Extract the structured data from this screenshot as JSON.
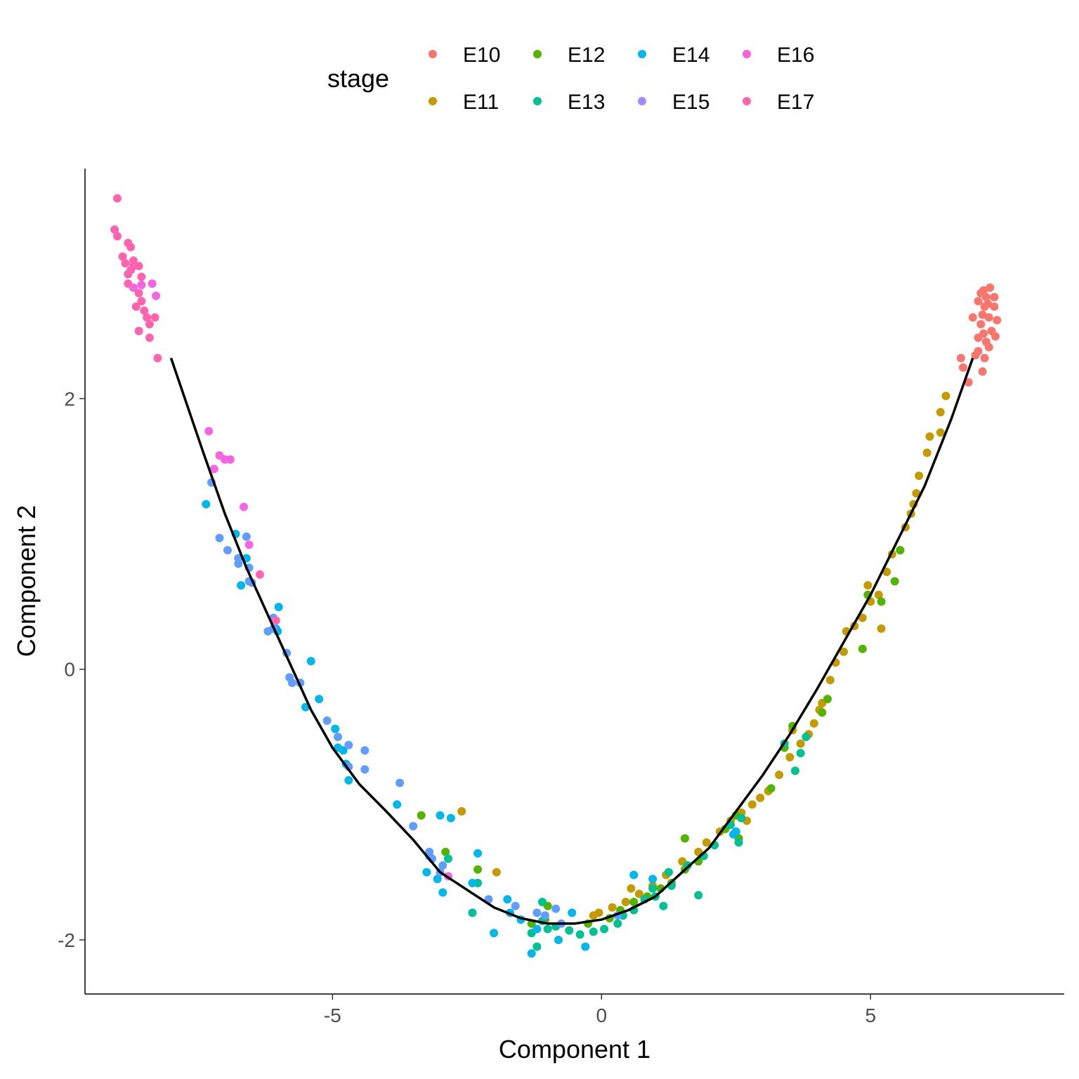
{
  "chart_data": {
    "type": "scatter",
    "xlabel": "Component 1",
    "ylabel": "Component 2",
    "xlim": [
      -9.6,
      8.6
    ],
    "ylim": [
      -2.4,
      3.7
    ],
    "x_ticks": [
      -5,
      0,
      5
    ],
    "x_tick_labels": [
      "-5",
      "0",
      "5"
    ],
    "y_ticks": [
      -2,
      0,
      2
    ],
    "y_tick_labels": [
      "-2",
      "0",
      "2"
    ],
    "grid": false,
    "legend": {
      "title": "stage",
      "position": "top",
      "entries": [
        {
          "name": "E10",
          "color": "#F8766D"
        },
        {
          "name": "E11",
          "color": "#C49A00"
        },
        {
          "name": "E12",
          "color": "#53B400"
        },
        {
          "name": "E13",
          "color": "#00C094"
        },
        {
          "name": "E14",
          "color": "#00B6EB"
        },
        {
          "name": "E15",
          "color": "#A58AFF"
        },
        {
          "name": "E16",
          "color": "#FB61D7"
        },
        {
          "name": "E17",
          "color": "#FF66A8"
        }
      ]
    },
    "series": [
      {
        "name": "E10",
        "color": "#F8766D",
        "points": [
          [
            7.0,
            2.72
          ],
          [
            7.05,
            2.78
          ],
          [
            7.1,
            2.8
          ],
          [
            7.12,
            2.68
          ],
          [
            7.15,
            2.75
          ],
          [
            7.08,
            2.62
          ],
          [
            7.18,
            2.7
          ],
          [
            7.2,
            2.6
          ],
          [
            7.05,
            2.55
          ],
          [
            7.1,
            2.48
          ],
          [
            7.15,
            2.42
          ],
          [
            7.2,
            2.38
          ],
          [
            7.0,
            2.45
          ],
          [
            7.3,
            2.68
          ],
          [
            7.35,
            2.58
          ],
          [
            7.32,
            2.46
          ],
          [
            7.25,
            2.5
          ],
          [
            7.0,
            2.35
          ],
          [
            6.95,
            2.32
          ],
          [
            6.68,
            2.3
          ],
          [
            6.82,
            2.12
          ],
          [
            7.08,
            2.2
          ],
          [
            7.3,
            2.75
          ],
          [
            7.12,
            2.3
          ],
          [
            6.72,
            2.23
          ],
          [
            6.9,
            2.6
          ],
          [
            7.22,
            2.82
          ]
        ]
      },
      {
        "name": "E11",
        "color": "#C49A00",
        "points": [
          [
            6.4,
            2.02
          ],
          [
            6.3,
            1.9
          ],
          [
            6.1,
            1.72
          ],
          [
            6.05,
            1.6
          ],
          [
            5.9,
            1.43
          ],
          [
            5.85,
            1.3
          ],
          [
            5.75,
            1.15
          ],
          [
            5.65,
            1.05
          ],
          [
            5.55,
            0.88
          ],
          [
            5.4,
            0.85
          ],
          [
            5.3,
            0.72
          ],
          [
            5.15,
            0.55
          ],
          [
            5.0,
            0.5
          ],
          [
            4.85,
            0.38
          ],
          [
            4.7,
            0.32
          ],
          [
            4.55,
            0.28
          ],
          [
            4.5,
            0.13
          ],
          [
            4.35,
            0.05
          ],
          [
            4.25,
            -0.08
          ],
          [
            4.1,
            -0.25
          ],
          [
            4.05,
            -0.3
          ],
          [
            3.95,
            -0.4
          ],
          [
            3.85,
            -0.48
          ],
          [
            3.7,
            -0.55
          ],
          [
            3.5,
            -0.65
          ],
          [
            3.3,
            -0.78
          ],
          [
            3.1,
            -0.9
          ],
          [
            2.95,
            -0.95
          ],
          [
            2.8,
            -1.0
          ],
          [
            2.6,
            -1.06
          ],
          [
            2.4,
            -1.12
          ],
          [
            2.2,
            -1.2
          ],
          [
            1.95,
            -1.28
          ],
          [
            1.8,
            -1.35
          ],
          [
            1.5,
            -1.42
          ],
          [
            1.2,
            -1.52
          ],
          [
            0.95,
            -1.6
          ],
          [
            0.7,
            -1.66
          ],
          [
            0.45,
            -1.72
          ],
          [
            0.2,
            -1.76
          ],
          [
            -0.05,
            -1.8
          ],
          [
            -0.15,
            -1.82
          ],
          [
            5.8,
            1.22
          ],
          [
            5.2,
            0.3
          ],
          [
            4.95,
            0.62
          ],
          [
            3.55,
            -0.45
          ],
          [
            2.7,
            -1.12
          ],
          [
            -2.6,
            -1.05
          ],
          [
            -1.95,
            -1.5
          ],
          [
            0.55,
            -1.62
          ],
          [
            6.3,
            1.75
          ]
        ]
      },
      {
        "name": "E12",
        "color": "#53B400",
        "points": [
          [
            5.45,
            0.65
          ],
          [
            5.2,
            0.5
          ],
          [
            4.85,
            0.15
          ],
          [
            4.2,
            -0.22
          ],
          [
            3.55,
            -0.42
          ],
          [
            3.15,
            -0.88
          ],
          [
            2.5,
            -1.08
          ],
          [
            2.3,
            -1.18
          ],
          [
            1.8,
            -1.42
          ],
          [
            1.55,
            -1.48
          ],
          [
            1.3,
            -1.58
          ],
          [
            1.1,
            -1.62
          ],
          [
            0.85,
            -1.68
          ],
          [
            0.6,
            -1.72
          ],
          [
            0.35,
            -1.78
          ],
          [
            0.15,
            -1.84
          ],
          [
            -0.25,
            -1.88
          ],
          [
            -1.0,
            -1.75
          ],
          [
            -1.3,
            -1.88
          ],
          [
            -3.35,
            -1.08
          ],
          [
            -2.9,
            -1.35
          ],
          [
            -1.05,
            -1.85
          ],
          [
            2.55,
            -1.25
          ],
          [
            1.55,
            -1.25
          ],
          [
            3.4,
            -0.58
          ],
          [
            4.95,
            0.55
          ],
          [
            5.55,
            0.88
          ],
          [
            -2.3,
            -1.48
          ],
          [
            4.1,
            -0.32
          ]
        ]
      },
      {
        "name": "E13",
        "color": "#00C094",
        "points": [
          [
            3.8,
            -0.5
          ],
          [
            3.7,
            -0.62
          ],
          [
            3.6,
            -0.75
          ],
          [
            3.4,
            -0.55
          ],
          [
            2.6,
            -1.1
          ],
          [
            2.4,
            -1.15
          ],
          [
            2.1,
            -1.3
          ],
          [
            1.9,
            -1.38
          ],
          [
            1.6,
            -1.45
          ],
          [
            1.25,
            -1.5
          ],
          [
            1.3,
            -1.6
          ],
          [
            1.15,
            -1.75
          ],
          [
            0.95,
            -1.62
          ],
          [
            0.8,
            -1.7
          ],
          [
            0.6,
            -1.78
          ],
          [
            0.3,
            -1.88
          ],
          [
            0.05,
            -1.92
          ],
          [
            -0.15,
            -1.94
          ],
          [
            -0.4,
            -1.96
          ],
          [
            -0.6,
            -1.93
          ],
          [
            -0.85,
            -1.9
          ],
          [
            -1.1,
            -1.86
          ],
          [
            -1.3,
            -1.95
          ],
          [
            -1.2,
            -2.05
          ],
          [
            -1.0,
            -1.92
          ],
          [
            -2.3,
            -1.58
          ],
          [
            -2.4,
            -1.8
          ],
          [
            -2.85,
            -1.4
          ],
          [
            1.8,
            -1.67
          ],
          [
            2.55,
            -1.28
          ],
          [
            1.0,
            -1.68
          ],
          [
            0.4,
            -1.82
          ],
          [
            -1.1,
            -1.72
          ]
        ]
      },
      {
        "name": "E14",
        "color": "#00B6EB",
        "points": [
          [
            -7.35,
            1.22
          ],
          [
            -6.8,
            1.0
          ],
          [
            -6.6,
            0.82
          ],
          [
            -6.7,
            0.62
          ],
          [
            -6.0,
            0.46
          ],
          [
            -6.05,
            0.3
          ],
          [
            -6.02,
            0.28
          ],
          [
            -5.4,
            0.06
          ],
          [
            -5.5,
            -0.28
          ],
          [
            -5.25,
            -0.22
          ],
          [
            -4.95,
            -0.44
          ],
          [
            -4.9,
            -0.58
          ],
          [
            -4.75,
            -0.7
          ],
          [
            -4.7,
            -0.82
          ],
          [
            -3.8,
            -1.0
          ],
          [
            -3.0,
            -1.08
          ],
          [
            -2.8,
            -1.1
          ],
          [
            -3.2,
            -1.38
          ],
          [
            -3.05,
            -1.55
          ],
          [
            -2.95,
            -1.65
          ],
          [
            -2.4,
            -1.58
          ],
          [
            -2.3,
            -1.36
          ],
          [
            -1.75,
            -1.7
          ],
          [
            -1.5,
            -1.85
          ],
          [
            -1.2,
            -1.92
          ],
          [
            -1.3,
            -2.1
          ],
          [
            -0.8,
            -2.0
          ],
          [
            -0.3,
            -2.05
          ],
          [
            0.6,
            -1.52
          ],
          [
            0.95,
            -1.55
          ],
          [
            2.45,
            -1.22
          ],
          [
            2.5,
            -1.2
          ],
          [
            -4.8,
            -0.6
          ],
          [
            -3.25,
            -1.5
          ],
          [
            -2.0,
            -1.95
          ],
          [
            -1.7,
            -1.8
          ],
          [
            -0.55,
            -1.8
          ]
        ]
      },
      {
        "name": "E15",
        "color": "#619CFF",
        "points": [
          [
            -7.25,
            1.38
          ],
          [
            -7.1,
            0.97
          ],
          [
            -6.95,
            0.88
          ],
          [
            -6.75,
            0.82
          ],
          [
            -6.75,
            0.78
          ],
          [
            -6.55,
            0.75
          ],
          [
            -6.55,
            0.65
          ],
          [
            -6.5,
            0.64
          ],
          [
            -6.6,
            0.98
          ],
          [
            -6.2,
            0.28
          ],
          [
            -6.1,
            0.3
          ],
          [
            -6.1,
            0.38
          ],
          [
            -5.85,
            0.12
          ],
          [
            -5.8,
            -0.06
          ],
          [
            -5.75,
            -0.1
          ],
          [
            -5.6,
            -0.1
          ],
          [
            -5.1,
            -0.38
          ],
          [
            -4.9,
            -0.5
          ],
          [
            -4.7,
            -0.56
          ],
          [
            -4.7,
            -0.72
          ],
          [
            -4.4,
            -0.74
          ],
          [
            -4.4,
            -0.6
          ],
          [
            -3.75,
            -0.84
          ],
          [
            -3.5,
            -1.16
          ],
          [
            -3.2,
            -1.35
          ],
          [
            -3.15,
            -1.4
          ],
          [
            -3.0,
            -1.5
          ],
          [
            -2.1,
            -1.7
          ],
          [
            -1.6,
            -1.75
          ],
          [
            -1.2,
            -1.8
          ],
          [
            -1.05,
            -1.82
          ],
          [
            -0.85,
            -1.77
          ],
          [
            0.3,
            -1.82
          ],
          [
            -0.75,
            -1.88
          ],
          [
            -2.95,
            -1.45
          ]
        ]
      },
      {
        "name": "E16",
        "color": "#F564E3",
        "points": [
          [
            -8.55,
            2.84
          ],
          [
            -8.35,
            2.85
          ],
          [
            -8.28,
            2.76
          ],
          [
            -7.3,
            1.76
          ],
          [
            -7.1,
            1.58
          ],
          [
            -7.0,
            1.55
          ],
          [
            -6.9,
            1.55
          ],
          [
            -6.55,
            0.92
          ],
          [
            -7.2,
            1.48
          ],
          [
            -6.65,
            1.2
          ],
          [
            -8.7,
            2.82
          ],
          [
            -2.85,
            -1.53
          ]
        ]
      },
      {
        "name": "E17",
        "color": "#FF64B0",
        "points": [
          [
            -9.0,
            3.48
          ],
          [
            -9.05,
            3.25
          ],
          [
            -9.0,
            3.2
          ],
          [
            -8.8,
            3.15
          ],
          [
            -8.75,
            3.12
          ],
          [
            -8.85,
            3.0
          ],
          [
            -8.7,
            2.98
          ],
          [
            -8.75,
            2.95
          ],
          [
            -8.8,
            2.92
          ],
          [
            -8.6,
            2.98
          ],
          [
            -8.55,
            2.9
          ],
          [
            -8.8,
            2.85
          ],
          [
            -8.6,
            2.78
          ],
          [
            -8.55,
            2.72
          ],
          [
            -8.65,
            2.68
          ],
          [
            -8.5,
            2.65
          ],
          [
            -8.45,
            2.6
          ],
          [
            -8.4,
            2.55
          ],
          [
            -8.3,
            2.6
          ],
          [
            -8.6,
            2.5
          ],
          [
            -8.4,
            2.45
          ],
          [
            -8.25,
            2.3
          ],
          [
            -6.35,
            0.7
          ],
          [
            -6.05,
            0.36
          ],
          [
            -8.7,
            3.02
          ],
          [
            -8.9,
            3.05
          ]
        ]
      }
    ],
    "trajectory": [
      [
        -8.0,
        2.3
      ],
      [
        -7.7,
        1.95
      ],
      [
        -7.4,
        1.6
      ],
      [
        -7.0,
        1.15
      ],
      [
        -6.6,
        0.75
      ],
      [
        -6.2,
        0.4
      ],
      [
        -5.8,
        0.05
      ],
      [
        -5.4,
        -0.3
      ],
      [
        -5.0,
        -0.58
      ],
      [
        -4.5,
        -0.85
      ],
      [
        -4.0,
        -1.05
      ],
      [
        -3.5,
        -1.26
      ],
      [
        -3.0,
        -1.5
      ],
      [
        -2.5,
        -1.63
      ],
      [
        -2.0,
        -1.76
      ],
      [
        -1.5,
        -1.84
      ],
      [
        -1.0,
        -1.88
      ],
      [
        -0.5,
        -1.88
      ],
      [
        0.0,
        -1.85
      ],
      [
        0.5,
        -1.78
      ],
      [
        1.0,
        -1.68
      ],
      [
        1.5,
        -1.5
      ],
      [
        2.0,
        -1.32
      ],
      [
        2.5,
        -1.05
      ],
      [
        3.0,
        -0.78
      ],
      [
        3.5,
        -0.48
      ],
      [
        4.0,
        -0.15
      ],
      [
        4.5,
        0.2
      ],
      [
        5.0,
        0.55
      ],
      [
        5.5,
        0.95
      ],
      [
        6.0,
        1.35
      ],
      [
        6.5,
        1.85
      ],
      [
        6.9,
        2.3
      ]
    ]
  }
}
